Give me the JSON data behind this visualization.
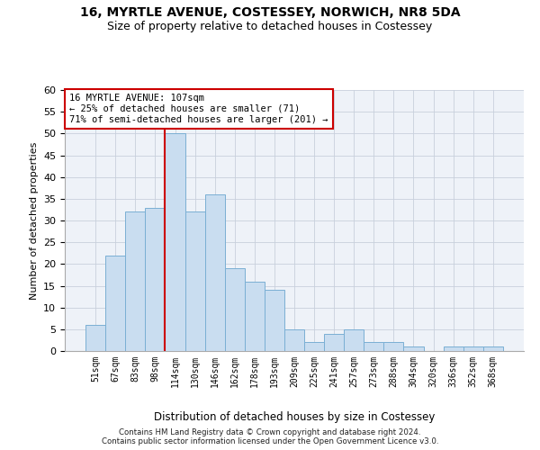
{
  "title1": "16, MYRTLE AVENUE, COSTESSEY, NORWICH, NR8 5DA",
  "title2": "Size of property relative to detached houses in Costessey",
  "xlabel": "Distribution of detached houses by size in Costessey",
  "ylabel": "Number of detached properties",
  "bar_labels": [
    "51sqm",
    "67sqm",
    "83sqm",
    "98sqm",
    "114sqm",
    "130sqm",
    "146sqm",
    "162sqm",
    "178sqm",
    "193sqm",
    "209sqm",
    "225sqm",
    "241sqm",
    "257sqm",
    "273sqm",
    "288sqm",
    "304sqm",
    "320sqm",
    "336sqm",
    "352sqm",
    "368sqm"
  ],
  "bar_values": [
    6,
    22,
    32,
    33,
    50,
    32,
    36,
    19,
    16,
    14,
    5,
    2,
    4,
    5,
    2,
    2,
    1,
    0,
    1,
    1,
    1
  ],
  "bar_color": "#c9ddf0",
  "bar_edge_color": "#7aafd4",
  "vline_x": 3.5,
  "vline_color": "#cc0000",
  "annotation_line1": "16 MYRTLE AVENUE: 107sqm",
  "annotation_line2": "← 25% of detached houses are smaller (71)",
  "annotation_line3": "71% of semi-detached houses are larger (201) →",
  "annotation_box_color": "#ffffff",
  "annotation_box_edge": "#cc0000",
  "ylim": [
    0,
    60
  ],
  "yticks": [
    0,
    5,
    10,
    15,
    20,
    25,
    30,
    35,
    40,
    45,
    50,
    55,
    60
  ],
  "footer": "Contains HM Land Registry data © Crown copyright and database right 2024.\nContains public sector information licensed under the Open Government Licence v3.0.",
  "bg_color": "#ffffff",
  "plot_bg_color": "#eef2f8"
}
